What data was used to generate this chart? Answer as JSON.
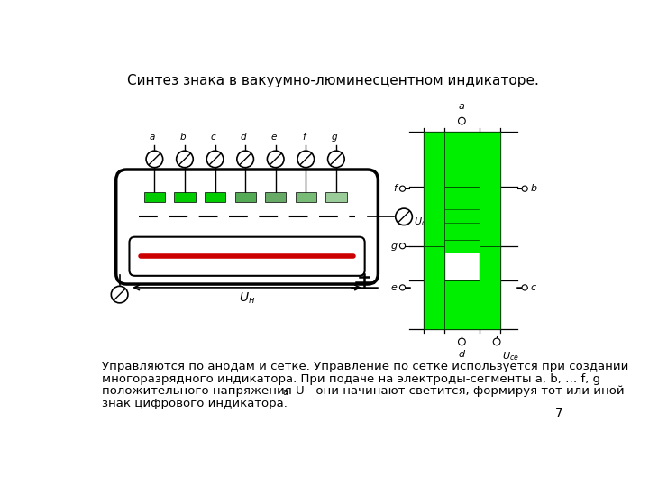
{
  "title": "Синтез знака в вакуумно-люминесцентном индикаторе.",
  "title_fontsize": 11,
  "bg_color": "#ffffff",
  "text_color": "#000000",
  "green_color": "#00ee00",
  "red_color": "#cc0000",
  "page_num": "7",
  "tube_labels": [
    "a",
    "b",
    "c",
    "d",
    "e",
    "f",
    "g"
  ],
  "anode_colors": [
    "#00cc00",
    "#00cc00",
    "#00cc00",
    "#55aa55",
    "#66aa66",
    "#77bb77",
    "#99cc99"
  ],
  "body_lines": [
    "Управляются по анодам и сетке. Управление по сетке используется при создании",
    "многоразрядного индикатора. При подаче на электроды-сегменты a, b, … f, g",
    "положительного напряжения U   они начинают светится, формируя тот или иной",
    "знак цифрового индикатора."
  ]
}
